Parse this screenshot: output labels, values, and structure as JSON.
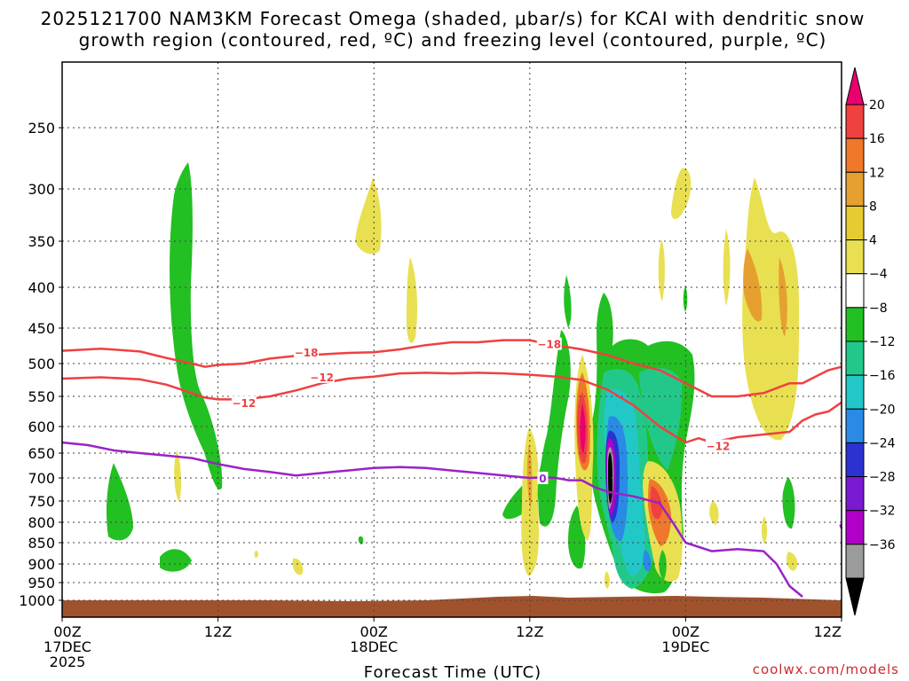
{
  "chart_data": {
    "type": "time-height contour",
    "title_line1": "2025121700 NAM3KM Forecast Omega (shaded, μbar/s) for KCAI with dendritic snow",
    "title_line2": "growth region (contoured, red, ºC) and freezing level (contoured, purple, ºC)",
    "xlabel": "Forecast Time (UTC)",
    "credit": "coolwx.com/models",
    "x_ticks": [
      {
        "hour": 0,
        "lines": [
          "00Z",
          "17DEC",
          "2025"
        ]
      },
      {
        "hour": 12,
        "lines": [
          "12Z"
        ]
      },
      {
        "hour": 24,
        "lines": [
          "00Z",
          "18DEC"
        ]
      },
      {
        "hour": 36,
        "lines": [
          "12Z"
        ]
      },
      {
        "hour": 48,
        "lines": [
          "00Z",
          "19DEC"
        ]
      },
      {
        "hour": 60,
        "lines": [
          "12Z"
        ]
      }
    ],
    "xlim_hours": [
      0,
      60
    ],
    "y_ticks": [
      "250",
      "300",
      "350",
      "400",
      "450",
      "500",
      "550",
      "600",
      "650",
      "700",
      "750",
      "800",
      "850",
      "900",
      "950",
      "1000"
    ],
    "ylim_mb": [
      1035,
      200
    ],
    "yaxis": "pressure (mb), inverted",
    "grid": true,
    "colorbar": {
      "labels": [
        "20",
        "16",
        "12",
        "8",
        "4",
        "-4",
        "-8",
        "-12",
        "-16",
        "-20",
        "-24",
        "-28",
        "-32",
        "-36"
      ],
      "colors": [
        "#e8006f",
        "#f04040",
        "#f0782a",
        "#e6a030",
        "#e6cc30",
        "#e8e050",
        "#ffffff",
        "#22c022",
        "#22c88a",
        "#22c8c8",
        "#2a8ae6",
        "#2a32d2",
        "#7a1ad2",
        "#b000c8",
        "#9b9b9b",
        "#000000"
      ]
    },
    "contours": [
      {
        "name": "-18",
        "color": "#f04040",
        "label_hour": 18.8,
        "label_mb": 484,
        "points": [
          [
            0,
            482
          ],
          [
            3,
            479
          ],
          [
            6,
            483
          ],
          [
            8,
            492
          ],
          [
            10,
            500
          ],
          [
            11,
            505
          ],
          [
            12,
            502
          ],
          [
            14,
            500
          ],
          [
            16,
            493
          ],
          [
            18,
            489
          ],
          [
            20,
            487
          ],
          [
            22,
            485
          ],
          [
            24,
            484
          ],
          [
            26,
            480
          ],
          [
            28,
            474
          ],
          [
            30,
            470
          ],
          [
            32,
            470
          ],
          [
            34,
            467
          ],
          [
            36,
            467
          ],
          [
            37,
            471
          ],
          [
            38,
            475
          ],
          [
            39,
            477
          ],
          [
            40,
            480
          ],
          [
            42,
            488
          ],
          [
            44,
            500
          ],
          [
            46,
            510
          ],
          [
            48,
            530
          ],
          [
            50,
            550
          ],
          [
            52,
            550
          ],
          [
            54,
            545
          ],
          [
            56,
            530
          ],
          [
            57,
            530
          ],
          [
            58,
            520
          ],
          [
            59,
            510
          ],
          [
            60,
            505
          ]
        ]
      },
      {
        "name": "-18",
        "color": "#f04040",
        "label_hour": 37.5,
        "label_mb": 472,
        "points": []
      },
      {
        "name": "-12",
        "color": "#f04040",
        "label_hour": 20.0,
        "label_mb": 520,
        "points": [
          [
            0,
            523
          ],
          [
            3,
            521
          ],
          [
            6,
            524
          ],
          [
            8,
            532
          ],
          [
            10,
            545
          ],
          [
            11,
            552
          ],
          [
            12,
            555
          ],
          [
            14,
            555
          ],
          [
            16,
            550
          ],
          [
            18,
            541
          ],
          [
            20,
            530
          ],
          [
            22,
            523
          ],
          [
            24,
            520
          ],
          [
            26,
            515
          ],
          [
            28,
            514
          ],
          [
            30,
            515
          ],
          [
            32,
            514
          ],
          [
            34,
            515
          ],
          [
            36,
            517
          ],
          [
            38,
            520
          ],
          [
            40,
            525
          ],
          [
            42,
            540
          ],
          [
            44,
            565
          ],
          [
            46,
            600
          ],
          [
            48,
            630
          ],
          [
            49,
            622
          ],
          [
            50,
            630
          ],
          [
            52,
            620
          ],
          [
            54,
            615
          ],
          [
            56,
            610
          ],
          [
            57,
            590
          ],
          [
            58,
            580
          ],
          [
            59,
            575
          ],
          [
            60,
            560
          ]
        ]
      },
      {
        "name": "-12",
        "color": "#f04040",
        "label_hour": 14.0,
        "label_mb": 560,
        "points": []
      },
      {
        "name": "-12",
        "color": "#f04040",
        "label_hour": 50.5,
        "label_mb": 636,
        "points": []
      },
      {
        "name": "0",
        "color": "#9a22c8",
        "label_hour": 37.0,
        "label_mb": 700,
        "points": [
          [
            0,
            630
          ],
          [
            2,
            635
          ],
          [
            4,
            645
          ],
          [
            6,
            650
          ],
          [
            8,
            655
          ],
          [
            10,
            660
          ],
          [
            12,
            672
          ],
          [
            14,
            682
          ],
          [
            16,
            688
          ],
          [
            18,
            695
          ],
          [
            20,
            690
          ],
          [
            22,
            685
          ],
          [
            24,
            680
          ],
          [
            26,
            678
          ],
          [
            28,
            680
          ],
          [
            30,
            685
          ],
          [
            32,
            690
          ],
          [
            34,
            695
          ],
          [
            36,
            700
          ],
          [
            37,
            699
          ],
          [
            38,
            700
          ],
          [
            39,
            705
          ],
          [
            40,
            705
          ],
          [
            41,
            720
          ],
          [
            42,
            730
          ],
          [
            44,
            740
          ],
          [
            46,
            755
          ],
          [
            47,
            800
          ],
          [
            48,
            850
          ],
          [
            50,
            870
          ],
          [
            52,
            865
          ],
          [
            54,
            870
          ],
          [
            55,
            900
          ],
          [
            56,
            960
          ],
          [
            57,
            990
          ]
        ]
      },
      {
        "name": "0-right",
        "color": "#9a22c8",
        "points": [
          [
            59.9,
            805
          ],
          [
            60,
            815
          ]
        ]
      }
    ],
    "omega_features": [
      {
        "value": -8,
        "hour": 9,
        "mb": 420,
        "color": "#22c022"
      },
      {
        "value": 8,
        "hour": 24,
        "mb": 345,
        "color": "#e8e050"
      },
      {
        "value": 20,
        "hour": 39.5,
        "mb": 620,
        "color": "#e8006f"
      },
      {
        "value": -36,
        "hour": 42.2,
        "mb": 700,
        "color": "#000000"
      },
      {
        "value": 12,
        "hour": 45.5,
        "mb": 760,
        "color": "#f0782a"
      },
      {
        "value": 8,
        "hour": 53.5,
        "mb": 430,
        "color": "#e6a030"
      }
    ]
  }
}
